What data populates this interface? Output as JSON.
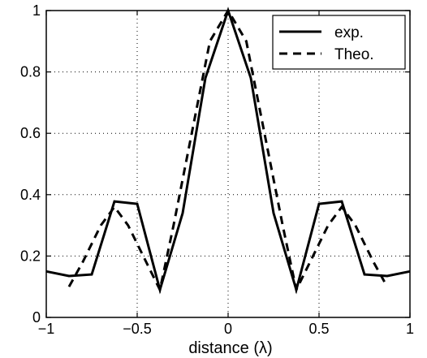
{
  "chart_data": {
    "type": "line",
    "xlabel": "distance (λ)",
    "ylabel": "",
    "xlim": [
      -1,
      1
    ],
    "ylim": [
      0,
      1
    ],
    "xticks": [
      -1,
      -0.5,
      0,
      0.5,
      1
    ],
    "xtick_labels": [
      "−1",
      "−0.5",
      "0",
      "0.5",
      "1"
    ],
    "yticks": [
      0,
      0.2,
      0.4,
      0.6,
      0.8,
      1
    ],
    "ytick_labels": [
      "0",
      "0.2",
      "0.4",
      "0.6",
      "0.8",
      "1"
    ],
    "grid": true,
    "legend_position": "top-right",
    "series": [
      {
        "name": "exp.",
        "style": "solid",
        "color": "#000000",
        "x": [
          -1,
          -0.875,
          -0.75,
          -0.625,
          -0.5,
          -0.375,
          -0.25,
          -0.125,
          0,
          0.125,
          0.25,
          0.375,
          0.5,
          0.625,
          0.75,
          0.875,
          1
        ],
        "y": [
          0.15,
          0.135,
          0.14,
          0.378,
          0.37,
          0.09,
          0.34,
          0.78,
          1.0,
          0.78,
          0.34,
          0.09,
          0.37,
          0.378,
          0.14,
          0.135,
          0.15
        ]
      },
      {
        "name": "Theo.",
        "style": "dashed",
        "color": "#000000",
        "x": [
          -0.875,
          -0.8,
          -0.7,
          -0.625,
          -0.55,
          -0.45,
          -0.375,
          -0.3,
          -0.2,
          -0.1,
          0,
          0.1,
          0.2,
          0.3,
          0.375,
          0.45,
          0.55,
          0.625,
          0.7,
          0.8,
          0.875
        ],
        "y": [
          0.1,
          0.18,
          0.3,
          0.36,
          0.3,
          0.18,
          0.09,
          0.3,
          0.6,
          0.9,
          1.0,
          0.9,
          0.6,
          0.3,
          0.09,
          0.18,
          0.3,
          0.36,
          0.3,
          0.18,
          0.1
        ]
      }
    ]
  }
}
